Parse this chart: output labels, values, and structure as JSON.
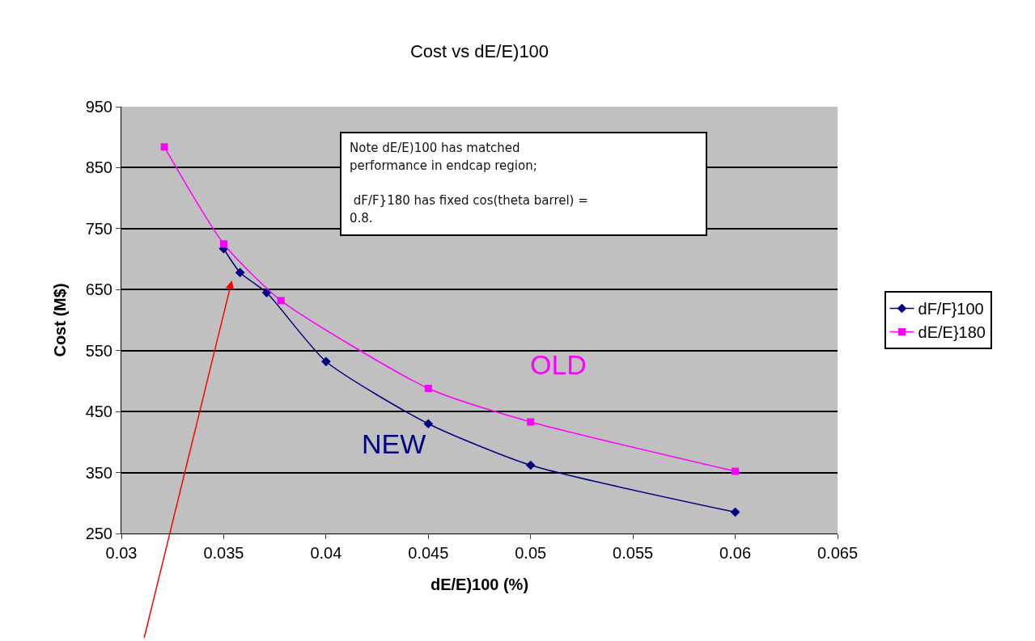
{
  "chart_data": {
    "type": "line",
    "title": "Cost vs dE/E)100",
    "xlabel": "dE/E)100 (%)",
    "ylabel": "Cost (M$)",
    "xlim": [
      0.03,
      0.065
    ],
    "xticks": [
      0.03,
      0.035,
      0.04,
      0.045,
      0.05,
      0.055,
      0.06,
      0.065
    ],
    "ylim": [
      250,
      950
    ],
    "yticks": [
      250,
      350,
      450,
      550,
      650,
      750,
      850,
      950
    ],
    "grid": "y",
    "legend": "right",
    "series": [
      {
        "name": "dF/F}100",
        "color": "#000080",
        "marker": "diamond",
        "x": [
          0.035,
          0.0358,
          0.0371,
          0.04,
          0.045,
          0.05,
          0.06
        ],
        "values": [
          717,
          678,
          645,
          532,
          430,
          362,
          285
        ]
      },
      {
        "name": "dE/E}180",
        "color": "#ff00ff",
        "marker": "square",
        "x": [
          0.0321,
          0.035,
          0.0378,
          0.045,
          0.05,
          0.06
        ],
        "values": [
          884,
          725,
          632,
          488,
          433,
          352
        ]
      }
    ],
    "annotations": [
      "Note dE/E)100 has matched\nperformance in endcap region;\n\n dF/F}180 has fixed cos(theta barrel) =\n0.8.",
      "NEW",
      "OLD"
    ]
  }
}
